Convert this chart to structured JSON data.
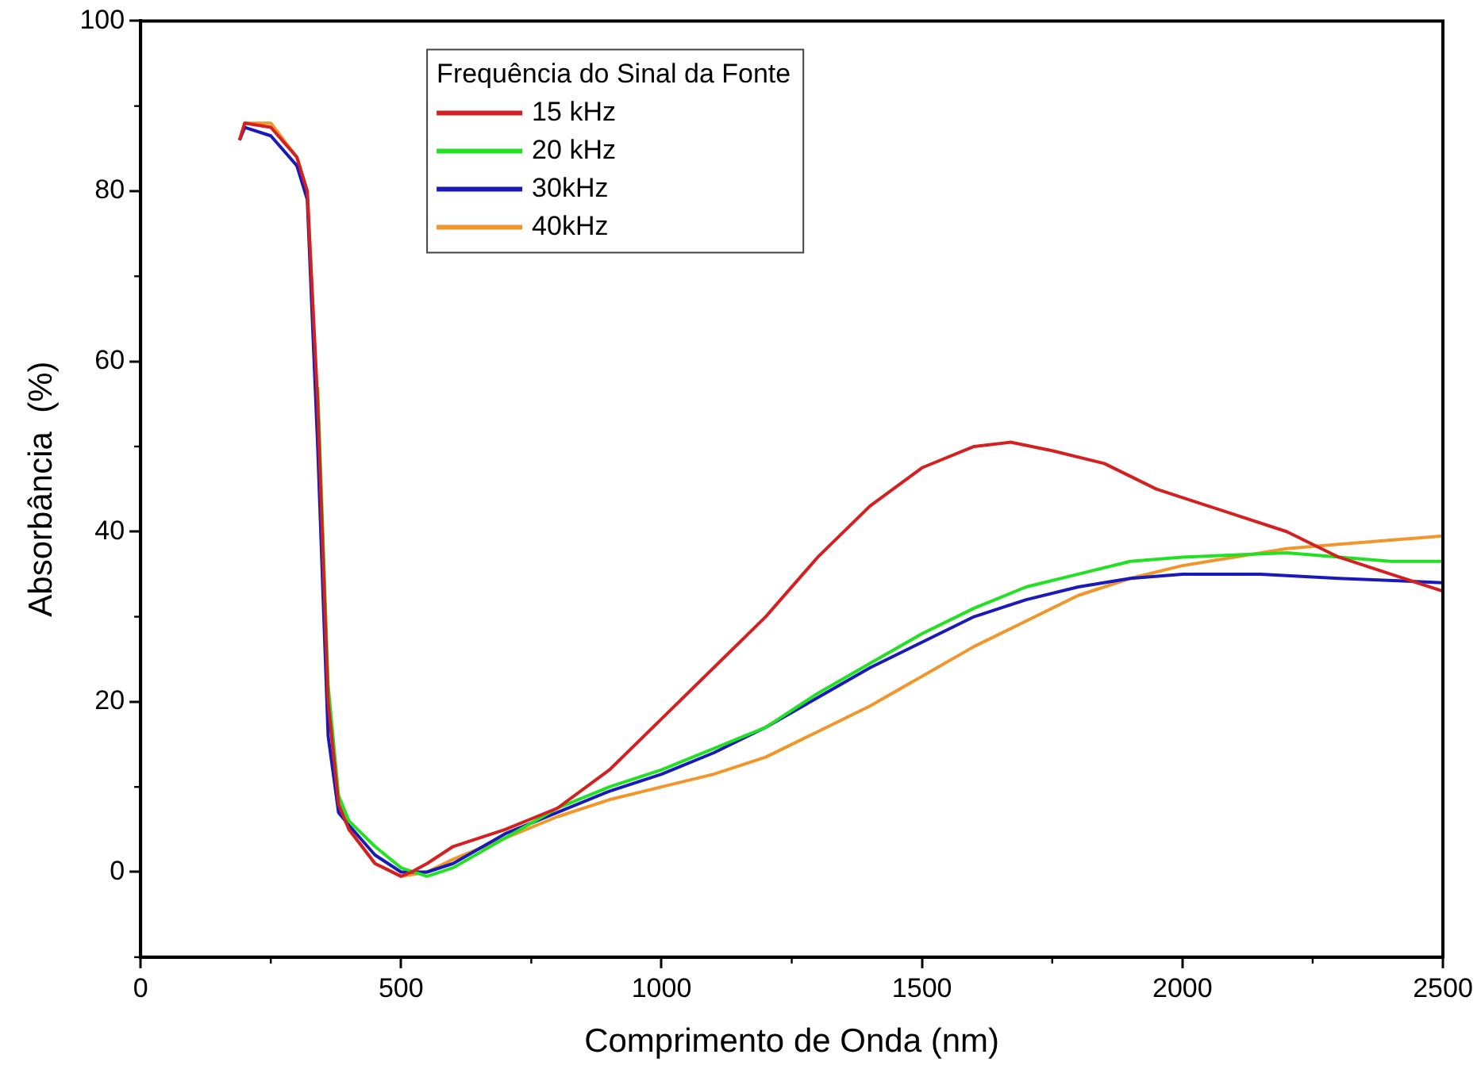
{
  "chart_data": {
    "type": "line",
    "xlabel": "Comprimento de Onda (nm)",
    "ylabel": "Absorbância  (%)",
    "legend_title": "Frequência do Sinal da Fonte",
    "legend": "top",
    "grid": false,
    "marker": "none",
    "line_style": "solid",
    "xlim": [
      0,
      2500
    ],
    "xticks": [
      0,
      500,
      1000,
      1500,
      2000,
      2500
    ],
    "ylim": [
      -10,
      100
    ],
    "yticks": [
      0,
      20,
      40,
      60,
      80,
      100
    ],
    "series": [
      {
        "name": "15 kHz",
        "color": "#d42020",
        "x": [
          190,
          200,
          250,
          300,
          320,
          340,
          360,
          380,
          400,
          450,
          500,
          520,
          550,
          600,
          700,
          800,
          900,
          1000,
          1100,
          1200,
          1300,
          1400,
          1500,
          1600,
          1670,
          1750,
          1850,
          1950,
          2050,
          2200,
          2300,
          2400,
          2500
        ],
        "values": [
          86,
          88,
          87.5,
          84,
          80,
          55,
          20,
          8,
          5,
          1,
          -0.5,
          0,
          1,
          3,
          5,
          7.5,
          12,
          18,
          24,
          30,
          37,
          43,
          47.5,
          50,
          50.5,
          49.5,
          48,
          45,
          43,
          40,
          37,
          35,
          33
        ]
      },
      {
        "name": "20 kHz",
        "color": "#22e022",
        "x": [
          340,
          360,
          380,
          400,
          450,
          500,
          550,
          600,
          700,
          800,
          900,
          1000,
          1100,
          1200,
          1300,
          1400,
          1500,
          1600,
          1700,
          1800,
          1900,
          2000,
          2200,
          2400,
          2500
        ],
        "values": [
          57,
          22,
          9,
          6,
          3,
          0.5,
          -0.5,
          0.5,
          4,
          7.5,
          10,
          12,
          14.5,
          17,
          21,
          24.5,
          28,
          31,
          33.5,
          35,
          36.5,
          37,
          37.5,
          36.5,
          36.5
        ]
      },
      {
        "name": "30kHz",
        "color": "#1a1ab8",
        "x": [
          190,
          200,
          250,
          300,
          320,
          340,
          360,
          380,
          400,
          450,
          500,
          550,
          600,
          700,
          800,
          900,
          1000,
          1100,
          1200,
          1300,
          1400,
          1500,
          1600,
          1700,
          1800,
          1900,
          2000,
          2150,
          2300,
          2500
        ],
        "values": [
          86,
          87.5,
          86.5,
          83,
          79,
          50,
          16,
          7,
          5.5,
          2,
          0,
          0,
          1,
          4.5,
          7,
          9.5,
          11.5,
          14,
          17,
          20.5,
          24,
          27,
          30,
          32,
          33.5,
          34.5,
          35,
          35,
          34.5,
          34
        ]
      },
      {
        "name": "40kHz",
        "color": "#f0962a",
        "x": [
          190,
          200,
          250,
          300,
          320,
          340,
          360,
          380,
          400,
          450,
          500,
          550,
          600,
          700,
          800,
          900,
          1000,
          1100,
          1200,
          1300,
          1400,
          1500,
          1600,
          1700,
          1800,
          1900,
          2000,
          2100,
          2200,
          2300,
          2400,
          2500
        ],
        "values": [
          86,
          88,
          88,
          84,
          80,
          55,
          20,
          8,
          5,
          1,
          -0.5,
          0,
          1.5,
          4,
          6.5,
          8.5,
          10,
          11.5,
          13.5,
          16.5,
          19.5,
          23,
          26.5,
          29.5,
          32.5,
          34.5,
          36,
          37,
          38,
          38.5,
          39,
          39.5
        ]
      }
    ]
  }
}
